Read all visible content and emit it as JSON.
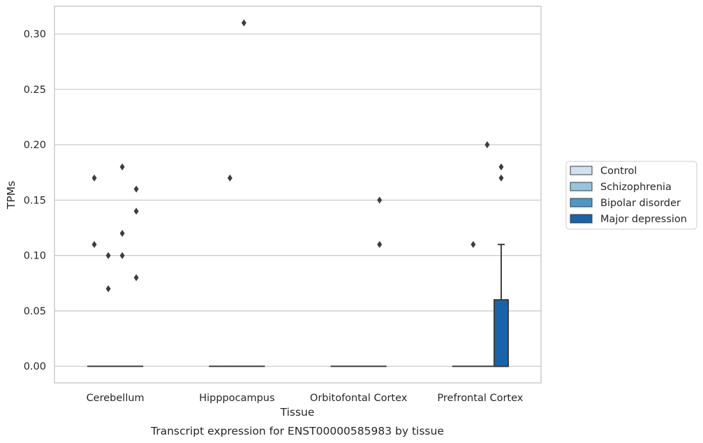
{
  "chart_data": {
    "type": "boxplot",
    "title": "",
    "caption": "Transcript expression for ENST00000585983 by tissue",
    "xlabel": "Tissue",
    "ylabel": "TPMs",
    "ylim": [
      -0.015,
      0.325
    ],
    "yticks": [
      "0.00",
      "0.05",
      "0.10",
      "0.15",
      "0.20",
      "0.25",
      "0.30"
    ],
    "ytick_values": [
      0.0,
      0.05,
      0.1,
      0.15,
      0.2,
      0.25,
      0.3
    ],
    "grid": "horizontal",
    "legend_position": "right",
    "categories": [
      "Cerebellum",
      "Hipppocampus",
      "Orbitofontal Cortex",
      "Prefrontal Cortex"
    ],
    "series": [
      {
        "name": "Control",
        "color": "#d0e1f2",
        "boxes": [
          {
            "q1": 0,
            "median": 0,
            "q3": 0,
            "whisker_low": 0,
            "whisker_high": 0,
            "outliers": [
              0.17,
              0.11
            ]
          },
          {
            "q1": 0,
            "median": 0,
            "q3": 0,
            "whisker_low": 0,
            "whisker_high": 0,
            "outliers": []
          },
          {
            "q1": 0,
            "median": 0,
            "q3": 0,
            "whisker_low": 0,
            "whisker_high": 0,
            "outliers": []
          },
          {
            "q1": 0,
            "median": 0,
            "q3": 0,
            "whisker_low": 0,
            "whisker_high": 0,
            "outliers": []
          }
        ]
      },
      {
        "name": "Schizophrenia",
        "color": "#94c4df",
        "boxes": [
          {
            "q1": 0,
            "median": 0,
            "q3": 0,
            "whisker_low": 0,
            "whisker_high": 0,
            "outliers": [
              0.1,
              0.07
            ]
          },
          {
            "q1": 0,
            "median": 0,
            "q3": 0,
            "whisker_low": 0,
            "whisker_high": 0,
            "outliers": [
              0.17
            ]
          },
          {
            "q1": 0,
            "median": 0,
            "q3": 0,
            "whisker_low": 0,
            "whisker_high": 0,
            "outliers": []
          },
          {
            "q1": 0,
            "median": 0,
            "q3": 0,
            "whisker_low": 0,
            "whisker_high": 0,
            "outliers": [
              0.11
            ]
          }
        ]
      },
      {
        "name": "Bipolar disorder",
        "color": "#4a98c9",
        "boxes": [
          {
            "q1": 0,
            "median": 0,
            "q3": 0,
            "whisker_low": 0,
            "whisker_high": 0,
            "outliers": [
              0.18,
              0.12,
              0.1
            ]
          },
          {
            "q1": 0,
            "median": 0,
            "q3": 0,
            "whisker_low": 0,
            "whisker_high": 0,
            "outliers": [
              0.31
            ]
          },
          {
            "q1": 0,
            "median": 0,
            "q3": 0,
            "whisker_low": 0,
            "whisker_high": 0,
            "outliers": []
          },
          {
            "q1": 0,
            "median": 0,
            "q3": 0,
            "whisker_low": 0,
            "whisker_high": 0,
            "outliers": [
              0.2
            ]
          }
        ]
      },
      {
        "name": "Major depression",
        "color": "#1764ab",
        "boxes": [
          {
            "q1": 0,
            "median": 0,
            "q3": 0,
            "whisker_low": 0,
            "whisker_high": 0,
            "outliers": [
              0.16,
              0.14,
              0.08
            ]
          },
          {
            "q1": 0,
            "median": 0,
            "q3": 0,
            "whisker_low": 0,
            "whisker_high": 0,
            "outliers": []
          },
          {
            "q1": 0,
            "median": 0,
            "q3": 0,
            "whisker_low": 0,
            "whisker_high": 0,
            "outliers": [
              0.15,
              0.11
            ]
          },
          {
            "q1": 0,
            "median": 0,
            "q3": 0.06,
            "whisker_low": 0,
            "whisker_high": 0.11,
            "outliers": [
              0.18,
              0.17
            ]
          }
        ]
      }
    ]
  }
}
